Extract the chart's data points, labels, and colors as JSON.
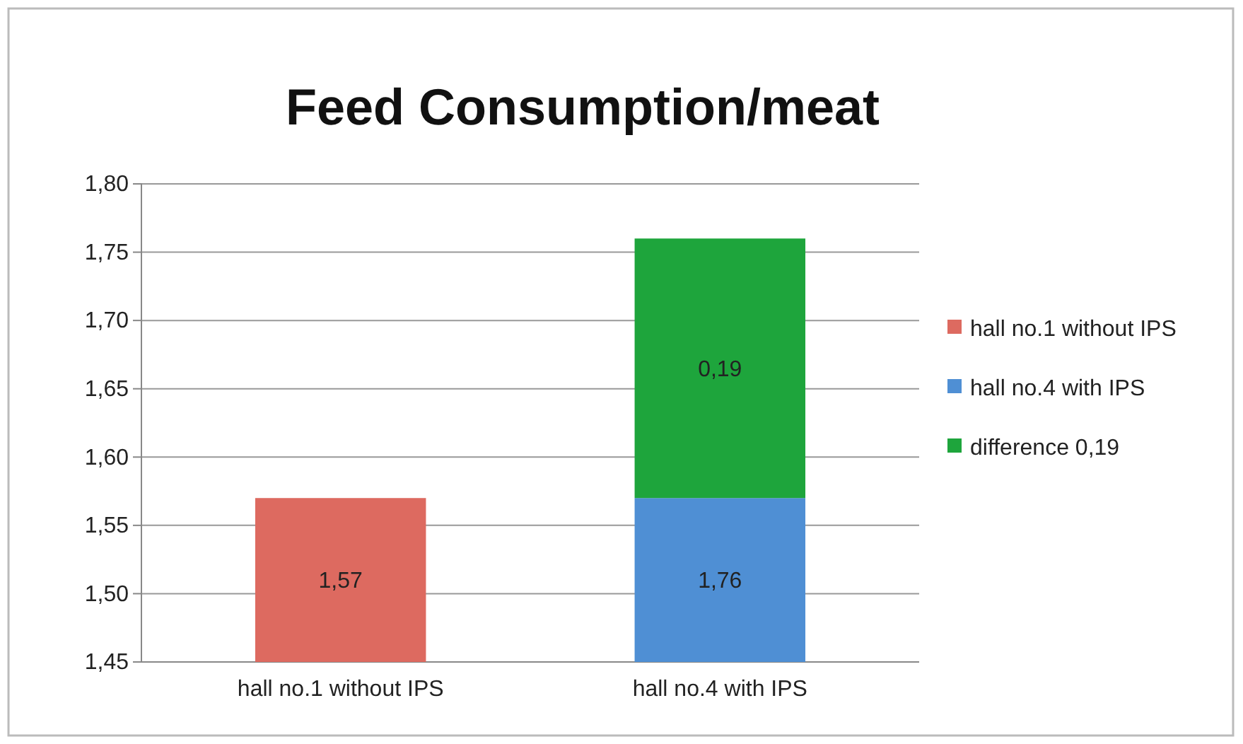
{
  "chart_data": {
    "type": "bar",
    "title": "Feed Consumption/meat",
    "stacked": true,
    "categories": [
      "hall no.1 without IPS",
      "hall no.4 with IPS"
    ],
    "series": [
      {
        "name": "hall no.1 without IPS",
        "color": "#dd6a60",
        "values": [
          1.57,
          null
        ],
        "value_labels": [
          "1,57",
          null
        ]
      },
      {
        "name": "hall no.4 with IPS",
        "color": "#4f8fd4",
        "values": [
          null,
          1.57
        ]
      },
      {
        "name": "difference 0,19",
        "color": "#1ea53c",
        "values": [
          null,
          0.19
        ],
        "base": [
          null,
          1.57
        ],
        "value_labels": [
          null,
          "0,19"
        ]
      }
    ],
    "totals": [
      null,
      "1,76"
    ],
    "ylim": [
      1.45,
      1.8
    ],
    "yticks": [
      {
        "value": 1.45,
        "label": "1,45"
      },
      {
        "value": 1.5,
        "label": "1,50"
      },
      {
        "value": 1.55,
        "label": "1,55"
      },
      {
        "value": 1.6,
        "label": "1,60"
      },
      {
        "value": 1.65,
        "label": "1,65"
      },
      {
        "value": 1.7,
        "label": "1,70"
      },
      {
        "value": 1.75,
        "label": "1,75"
      },
      {
        "value": 1.8,
        "label": "1,80"
      }
    ],
    "grid": "y",
    "legend": "right"
  }
}
